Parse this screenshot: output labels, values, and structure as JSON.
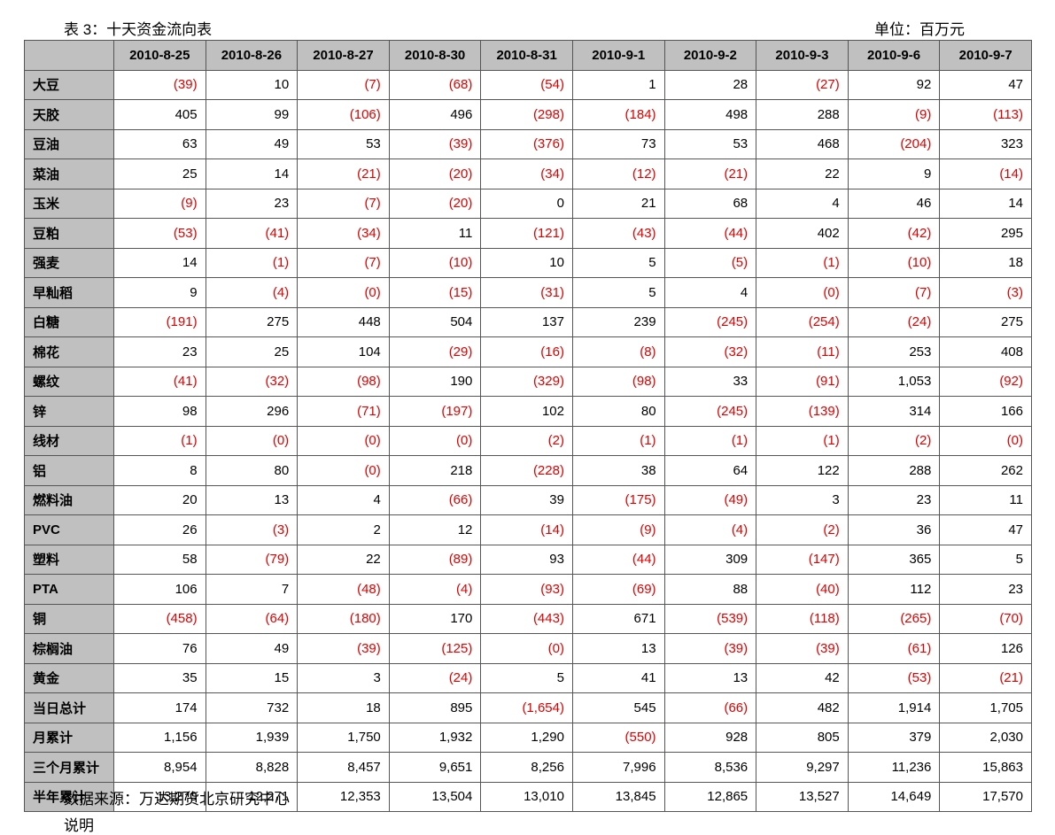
{
  "header": {
    "title": "表 3：十天资金流向表",
    "unit": "单位：百万元"
  },
  "table": {
    "columns": [
      "2010-8-25",
      "2010-8-26",
      "2010-8-27",
      "2010-8-30",
      "2010-8-31",
      "2010-9-1",
      "2010-9-2",
      "2010-9-3",
      "2010-9-6",
      "2010-9-7"
    ],
    "rows": [
      {
        "label": "大豆",
        "cells": [
          "(39)",
          "10",
          "(7)",
          "(68)",
          "(54)",
          "1",
          "28",
          "(27)",
          "92",
          "47"
        ]
      },
      {
        "label": "天胶",
        "cells": [
          "405",
          "99",
          "(106)",
          "496",
          "(298)",
          "(184)",
          "498",
          "288",
          "(9)",
          "(113)"
        ]
      },
      {
        "label": "豆油",
        "cells": [
          "63",
          "49",
          "53",
          "(39)",
          "(376)",
          "73",
          "53",
          "468",
          "(204)",
          "323"
        ]
      },
      {
        "label": "菜油",
        "cells": [
          "25",
          "14",
          "(21)",
          "(20)",
          "(34)",
          "(12)",
          "(21)",
          "22",
          "9",
          "(14)"
        ]
      },
      {
        "label": "玉米",
        "cells": [
          "(9)",
          "23",
          "(7)",
          "(20)",
          "0",
          "21",
          "68",
          "4",
          "46",
          "14"
        ]
      },
      {
        "label": "豆粕",
        "cells": [
          "(53)",
          "(41)",
          "(34)",
          "11",
          "(121)",
          "(43)",
          "(44)",
          "402",
          "(42)",
          "295"
        ]
      },
      {
        "label": "强麦",
        "cells": [
          "14",
          "(1)",
          "(7)",
          "(10)",
          "10",
          "5",
          "(5)",
          "(1)",
          "(10)",
          "18"
        ]
      },
      {
        "label": "早籼稻",
        "cells": [
          "9",
          "(4)",
          "(0)",
          "(15)",
          "(31)",
          "5",
          "4",
          "(0)",
          "(7)",
          "(3)"
        ]
      },
      {
        "label": "白糖",
        "cells": [
          "(191)",
          "275",
          "448",
          "504",
          "137",
          "239",
          "(245)",
          "(254)",
          "(24)",
          "275"
        ]
      },
      {
        "label": "棉花",
        "cells": [
          "23",
          "25",
          "104",
          "(29)",
          "(16)",
          "(8)",
          "(32)",
          "(11)",
          "253",
          "408"
        ]
      },
      {
        "label": "螺纹",
        "cells": [
          "(41)",
          "(32)",
          "(98)",
          "190",
          "(329)",
          "(98)",
          "33",
          "(91)",
          "1,053",
          "(92)"
        ]
      },
      {
        "label": "锌",
        "cells": [
          "98",
          "296",
          "(71)",
          "(197)",
          "102",
          "80",
          "(245)",
          "(139)",
          "314",
          "166"
        ]
      },
      {
        "label": "线材",
        "cells": [
          "(1)",
          "(0)",
          "(0)",
          "(0)",
          "(2)",
          "(1)",
          "(1)",
          "(1)",
          "(2)",
          "(0)"
        ]
      },
      {
        "label": "铝",
        "cells": [
          "8",
          "80",
          "(0)",
          "218",
          "(228)",
          "38",
          "64",
          "122",
          "288",
          "262"
        ]
      },
      {
        "label": "燃料油",
        "cells": [
          "20",
          "13",
          "4",
          "(66)",
          "39",
          "(175)",
          "(49)",
          "3",
          "23",
          "11"
        ]
      },
      {
        "label": "PVC",
        "cells": [
          "26",
          "(3)",
          "2",
          "12",
          "(14)",
          "(9)",
          "(4)",
          "(2)",
          "36",
          "47"
        ]
      },
      {
        "label": "塑料",
        "cells": [
          "58",
          "(79)",
          "22",
          "(89)",
          "93",
          "(44)",
          "309",
          "(147)",
          "365",
          "5"
        ]
      },
      {
        "label": "PTA",
        "cells": [
          "106",
          "7",
          "(48)",
          "(4)",
          "(93)",
          "(69)",
          "88",
          "(40)",
          "112",
          "23"
        ]
      },
      {
        "label": "铜",
        "cells": [
          "(458)",
          "(64)",
          "(180)",
          "170",
          "(443)",
          "671",
          "(539)",
          "(118)",
          "(265)",
          "(70)"
        ]
      },
      {
        "label": "棕榈油",
        "cells": [
          "76",
          "49",
          "(39)",
          "(125)",
          "(0)",
          "13",
          "(39)",
          "(39)",
          "(61)",
          "126"
        ]
      },
      {
        "label": "黄金",
        "cells": [
          "35",
          "15",
          "3",
          "(24)",
          "5",
          "41",
          "13",
          "42",
          "(53)",
          "(21)"
        ]
      },
      {
        "label": "当日总计",
        "cells": [
          "174",
          "732",
          "18",
          "895",
          "(1,654)",
          "545",
          "(66)",
          "482",
          "1,914",
          "1,705"
        ]
      },
      {
        "label": "月累计",
        "cells": [
          "1,156",
          "1,939",
          "1,750",
          "1,932",
          "1,290",
          "(550)",
          "928",
          "805",
          "379",
          "2,030"
        ]
      },
      {
        "label": "三个月累计",
        "cells": [
          "8,954",
          "8,828",
          "8,457",
          "9,651",
          "8,256",
          "7,996",
          "8,536",
          "9,297",
          "11,236",
          "15,863"
        ]
      },
      {
        "label": "半年累计",
        "cells": [
          "13,270",
          "12,271",
          "12,353",
          "13,504",
          "13,010",
          "13,845",
          "12,865",
          "13,527",
          "14,649",
          "17,570"
        ]
      }
    ],
    "negative_color": "#e00000"
  },
  "footer": {
    "source": "数据来源：万达期货北京研究中心",
    "note": "说明"
  }
}
